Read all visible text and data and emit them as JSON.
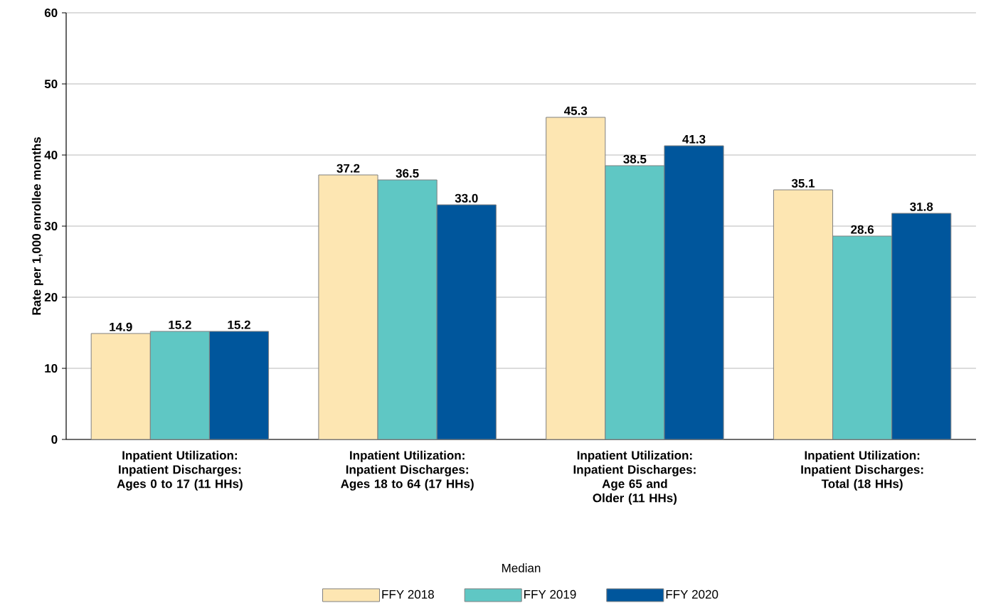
{
  "chart_data": {
    "type": "bar",
    "ylabel": "Rate per 1,000 enrollee months",
    "categories": [
      "Inpatient Utilization: Inpatient Discharges: Ages 0 to 17 (11 HHs)",
      "Inpatient Utilization: Inpatient Discharges: Ages 18 to 64 (17 HHs)",
      "Inpatient Utilization: Inpatient Discharges: Age 65 and Older (11 HHs)",
      "Inpatient Utilization: Inpatient Discharges: Total (18 HHs)"
    ],
    "series": [
      {
        "name": "FFY 2018",
        "color": "#fde6b2",
        "values": [
          14.9,
          37.2,
          45.3,
          35.1
        ],
        "value_labels": [
          "14.9",
          "37.2",
          "45.3",
          "35.1"
        ]
      },
      {
        "name": "FFY 2019",
        "color": "#5fc7c4",
        "values": [
          15.2,
          36.5,
          38.5,
          28.6
        ],
        "value_labels": [
          "15.2",
          "36.5",
          "38.5",
          "28.6"
        ]
      },
      {
        "name": "FFY 2020",
        "color": "#00569c",
        "values": [
          15.2,
          33.0,
          41.3,
          31.8
        ],
        "value_labels": [
          "15.2",
          "33.0",
          "41.3",
          "31.8"
        ]
      }
    ],
    "ylim": [
      0,
      60
    ],
    "yticks": [
      0,
      10,
      20,
      30,
      40,
      50,
      60
    ],
    "grid": "y",
    "legend": "bottom",
    "legend_title": "Median"
  }
}
